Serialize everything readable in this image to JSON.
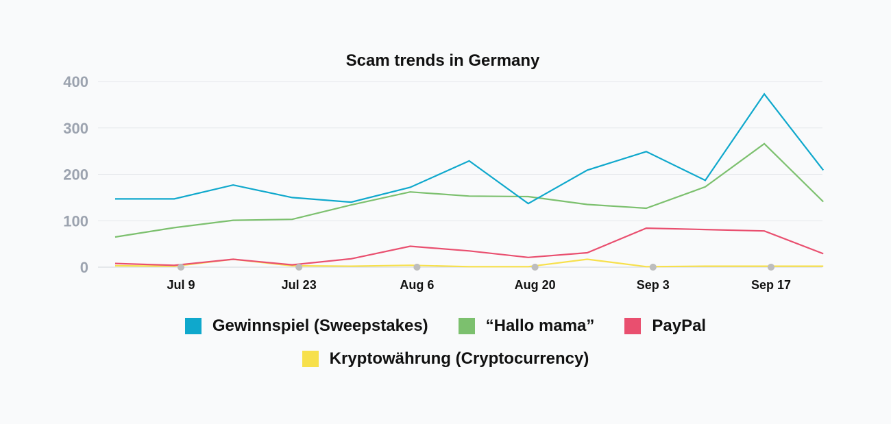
{
  "chart_data": {
    "type": "line",
    "title": "Scam trends in Germany",
    "xlabel": "",
    "ylabel": "",
    "ylim": [
      0,
      400
    ],
    "yticks": [
      "0",
      "100",
      "200",
      "300",
      "400"
    ],
    "xticks": [
      "Jul 9",
      "Jul 23",
      "Aug 6",
      "Aug 20",
      "Sep 3",
      "Sep 17"
    ],
    "x": [
      "Jun 29",
      "Jul 6",
      "Jul 13",
      "Jul 20",
      "Jul 27",
      "Aug 3",
      "Aug 10",
      "Aug 17",
      "Aug 24",
      "Aug 31",
      "Sep 7",
      "Sep 14",
      "Sep 21"
    ],
    "grid": true,
    "legend_position": "bottom",
    "series": [
      {
        "name": "Gewinnspiel (Sweepstakes)",
        "color": "#0fa8cc",
        "values": [
          147,
          147,
          177,
          150,
          140,
          172,
          229,
          137,
          209,
          249,
          187,
          373,
          209
        ]
      },
      {
        "name": "“Hallo mama”",
        "color": "#7cc06e",
        "values": [
          65,
          85,
          101,
          103,
          134,
          162,
          153,
          152,
          135,
          127,
          173,
          266,
          141
        ]
      },
      {
        "name": "PayPal",
        "color": "#e94f6f",
        "values": [
          8,
          4,
          17,
          5,
          18,
          45,
          35,
          21,
          31,
          84,
          81,
          78,
          29
        ]
      },
      {
        "name": "Kryptowährung (Cryptocurrency)",
        "color": "#f7e04b",
        "values": [
          3,
          2,
          17,
          3,
          2,
          4,
          1,
          1,
          17,
          1,
          2,
          2,
          2
        ]
      }
    ]
  }
}
